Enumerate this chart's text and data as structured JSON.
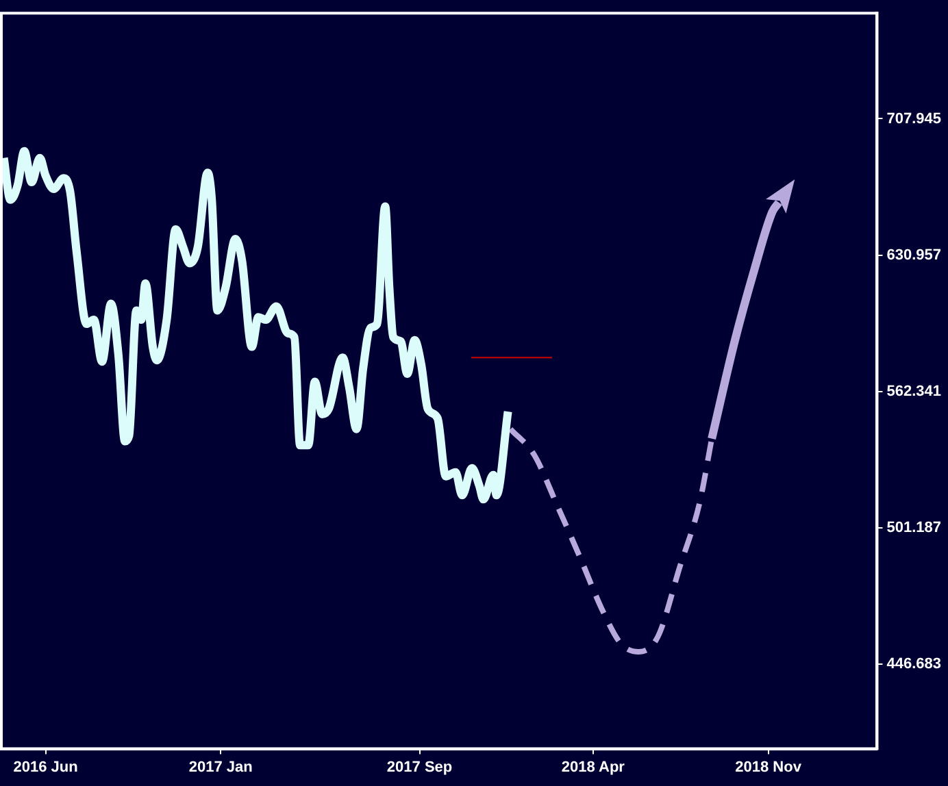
{
  "chart_data": {
    "type": "line",
    "log": "y",
    "marker": "none",
    "grid": false,
    "legend": false,
    "xlim": [
      "2016-04-08",
      "2019-03-14"
    ],
    "xticks": [
      {
        "value": "2016-06-01",
        "label": "2016 Jun"
      },
      {
        "value": "2017-01-01",
        "label": "2017 Jan"
      },
      {
        "value": "2017-09-01",
        "label": "2017 Sep"
      },
      {
        "value": "2018-04-01",
        "label": "2018 Apr"
      },
      {
        "value": "2018-11-01",
        "label": "2018 Nov"
      }
    ],
    "ylim": [
      415.8,
      774
    ],
    "yticks": [
      {
        "value": 446.683,
        "label": "446.683"
      },
      {
        "value": 501.187,
        "label": "501.187"
      },
      {
        "value": 562.341,
        "label": "562.341"
      },
      {
        "value": 630.957,
        "label": "630.957"
      },
      {
        "value": 707.945,
        "label": "707.945"
      }
    ],
    "series": [
      {
        "color": "#dcfcfc",
        "line_style": "solid",
        "x": [
          "2016-04-11",
          "2016-04-19",
          "2016-04-28",
          "2016-05-06",
          "2016-05-15",
          "2016-05-25",
          "2016-06-01",
          "2016-06-11",
          "2016-06-23",
          "2016-07-01",
          "2016-07-09",
          "2016-07-21",
          "2016-07-30",
          "2016-08-09",
          "2016-08-20",
          "2016-08-29",
          "2016-09-06",
          "2016-09-11",
          "2016-09-20",
          "2016-09-26",
          "2016-10-01",
          "2016-10-10",
          "2016-10-15",
          "2016-10-27",
          "2016-11-07",
          "2016-11-16",
          "2016-11-24",
          "2016-12-04",
          "2016-12-16",
          "2016-12-21",
          "2016-12-28",
          "2017-01-07",
          "2017-01-19",
          "2017-01-27",
          "2017-02-08",
          "2017-02-16",
          "2017-02-25",
          "2017-03-10",
          "2017-03-24",
          "2017-04-01",
          "2017-04-08",
          "2017-04-18",
          "2017-04-26",
          "2017-05-05",
          "2017-05-13",
          "2017-05-30",
          "2017-06-07",
          "2017-06-16",
          "2017-06-24",
          "2017-07-03",
          "2017-07-11",
          "2017-07-21",
          "2017-07-26",
          "2017-07-31",
          "2017-08-09",
          "2017-08-17",
          "2017-08-26",
          "2017-09-03",
          "2017-09-11",
          "2017-09-23",
          "2017-10-03",
          "2017-10-15",
          "2017-10-23",
          "2017-11-04",
          "2017-11-13",
          "2017-11-18",
          "2017-11-30",
          "2017-12-04",
          "2017-12-18"
        ],
        "values": [
          684.9,
          661.1,
          669.5,
          688.8,
          671.0,
          684.9,
          674.8,
          667.2,
          673.3,
          665.7,
          632.4,
          595.3,
          597.4,
          576.6,
          605.6,
          579.9,
          539.1,
          541.6,
          602.1,
          597.4,
          616.0,
          583.9,
          577.3,
          597.4,
          644.8,
          635.3,
          626.6,
          635.3,
          676.4,
          661.9,
          602.1,
          613.9,
          639.6,
          628.1,
          583.9,
          598.7,
          597.4,
          604.2,
          590.6,
          588.6,
          537.3,
          537.3,
          566.9,
          551.6,
          554.1,
          578.6,
          564.3,
          544.7,
          573.3,
          593.3,
          595.3,
          657.4,
          613.9,
          588.6,
          586.6,
          570.7,
          587.2,
          575.3,
          554.1,
          549.7,
          523.4,
          525.2,
          515.1,
          527.0,
          519.2,
          513.3,
          524.0,
          515.1,
          552.8
        ]
      },
      {
        "color": "#b8a9dc",
        "line_style": "dashed",
        "x": [
          "2017-12-21",
          "2018-01-19",
          "2018-02-15",
          "2018-03-16",
          "2018-04-13",
          "2018-05-05",
          "2018-05-27",
          "2018-06-19",
          "2018-07-16",
          "2018-08-09",
          "2018-08-24"
        ],
        "values": [
          544.7,
          533.0,
          511.6,
          488.8,
          467.0,
          454.4,
          451.3,
          457.0,
          484.9,
          511.6,
          540.3
        ]
      },
      {
        "color": "#b8a9dc",
        "line_style": "solid",
        "x": [
          "2018-08-24",
          "2018-09-21",
          "2018-10-15",
          "2018-11-06",
          "2018-11-14"
        ],
        "values": [
          540.3,
          586.6,
          623.1,
          654.4,
          659.6
        ]
      },
      {
        "color": "#cc0000",
        "line_style": "solid",
        "x": [
          "2017-11-03",
          "2018-02-10"
        ],
        "values": [
          578.6,
          578.6
        ]
      }
    ]
  }
}
